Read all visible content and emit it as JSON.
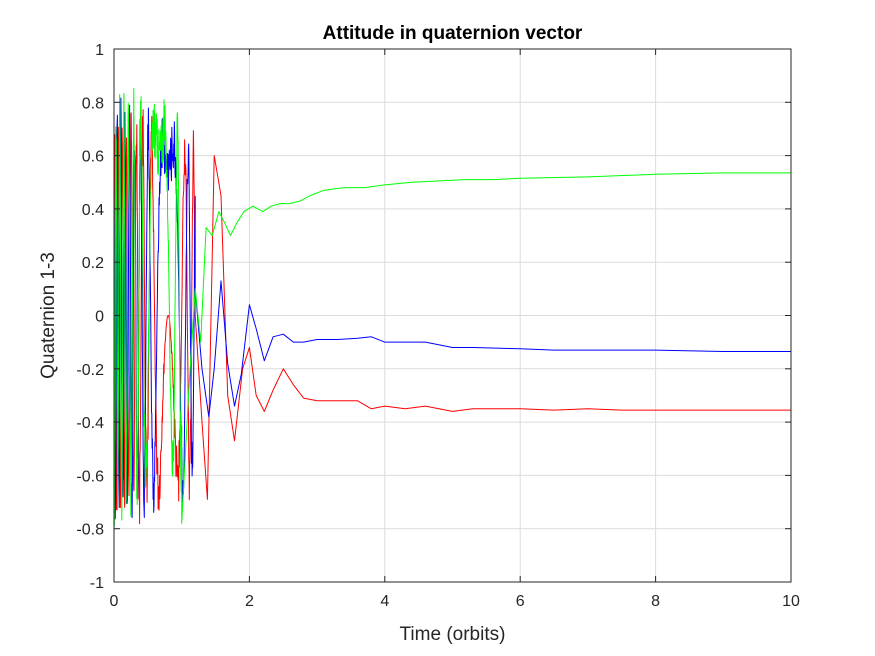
{
  "chart_data": {
    "type": "line",
    "title": "Attitude in quaternion vector",
    "xlabel": "Time (orbits)",
    "ylabel": "Quaternion 1-3",
    "xlim": [
      0,
      10
    ],
    "ylim": [
      -1,
      1
    ],
    "x_ticks": [
      "0",
      "2",
      "4",
      "6",
      "8",
      "10"
    ],
    "y_ticks": [
      "1",
      "0.8",
      "0.6",
      "0.4",
      "0.2",
      "0",
      "-0.2",
      "-0.4",
      "-0.6",
      "-0.8",
      "-1"
    ],
    "grid": true,
    "series": [
      {
        "color": "#ff0000",
        "x": [
          1.2,
          1.3,
          1.38,
          1.48,
          1.58,
          1.68,
          1.78,
          1.9,
          2.0,
          2.1,
          2.22,
          2.35,
          2.5,
          2.65,
          2.8,
          3.0,
          3.3,
          3.6,
          3.8,
          4.0,
          4.3,
          4.6,
          5.0,
          5.3,
          5.6,
          6.0,
          6.5,
          7.0,
          7.5,
          8.0,
          9.0,
          10.0
        ],
        "values": [
          0.0,
          -0.4,
          -0.69,
          0.6,
          0.45,
          -0.3,
          -0.47,
          -0.2,
          -0.12,
          -0.3,
          -0.36,
          -0.28,
          -0.2,
          -0.26,
          -0.31,
          -0.32,
          -0.32,
          -0.32,
          -0.35,
          -0.34,
          -0.35,
          -0.34,
          -0.36,
          -0.35,
          -0.35,
          -0.35,
          -0.355,
          -0.35,
          -0.355,
          -0.355,
          -0.355,
          -0.355
        ]
      },
      {
        "color": "#0000ff",
        "x": [
          1.2,
          1.3,
          1.4,
          1.48,
          1.58,
          1.68,
          1.78,
          1.88,
          2.0,
          2.1,
          2.22,
          2.35,
          2.5,
          2.65,
          2.8,
          3.0,
          3.3,
          3.6,
          3.8,
          4.0,
          4.3,
          4.6,
          5.0,
          5.3,
          6.0,
          6.5,
          7.0,
          7.5,
          8.0,
          9.0,
          10.0
        ],
        "values": [
          0.1,
          -0.2,
          -0.38,
          -0.2,
          0.13,
          -0.18,
          -0.34,
          -0.22,
          0.04,
          -0.05,
          -0.17,
          -0.08,
          -0.07,
          -0.1,
          -0.1,
          -0.09,
          -0.09,
          -0.085,
          -0.08,
          -0.1,
          -0.1,
          -0.1,
          -0.12,
          -0.12,
          -0.125,
          -0.13,
          -0.13,
          -0.13,
          -0.13,
          -0.135,
          -0.135
        ]
      },
      {
        "color": "#00ff00",
        "x": [
          1.0,
          1.1,
          1.2,
          1.28,
          1.36,
          1.45,
          1.55,
          1.63,
          1.72,
          1.82,
          1.92,
          2.05,
          2.2,
          2.32,
          2.45,
          2.6,
          2.75,
          2.9,
          3.1,
          3.4,
          3.7,
          4.0,
          4.4,
          4.8,
          5.2,
          5.6,
          6.0,
          7.0,
          8.0,
          9.0,
          10.0
        ],
        "values": [
          -0.78,
          -0.3,
          0.1,
          -0.1,
          0.33,
          0.3,
          0.39,
          0.35,
          0.3,
          0.35,
          0.39,
          0.41,
          0.39,
          0.41,
          0.42,
          0.42,
          0.43,
          0.45,
          0.47,
          0.48,
          0.48,
          0.49,
          0.5,
          0.505,
          0.51,
          0.51,
          0.515,
          0.52,
          0.53,
          0.535,
          0.535
        ]
      }
    ]
  }
}
